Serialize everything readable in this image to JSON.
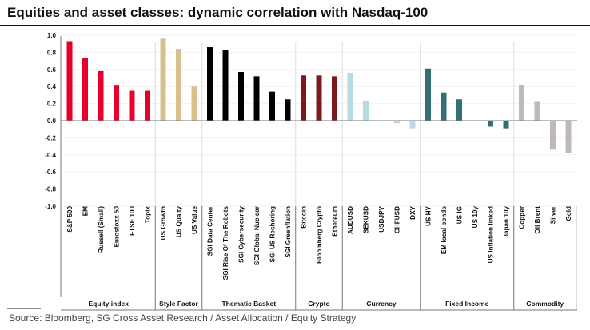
{
  "title": "Equities and asset classes: dynamic correlation with Nasdaq-100",
  "source": "Source: Bloomberg, SG Cross Asset Research / Asset Allocation / Equity Strategy",
  "chart_data": {
    "type": "bar",
    "title": "Equities and asset classes: dynamic correlation with Nasdaq-100",
    "ylim": [
      -1.0,
      1.0
    ],
    "yticks": [
      "1.0",
      "0.8",
      "0.6",
      "0.4",
      "0.2",
      "0.0",
      "-0.2",
      "-0.4",
      "-0.6",
      "-0.8",
      "-1.0"
    ],
    "grid": true,
    "groups": [
      {
        "name": "Equity index",
        "color": "#e8002d",
        "categories": [
          "S&P 500",
          "EM",
          "Russell (Small)",
          "Eurostoxx 50",
          "FTSE 100",
          "Topix"
        ],
        "values": [
          0.93,
          0.73,
          0.58,
          0.41,
          0.35,
          0.35
        ]
      },
      {
        "name": "Style Factor",
        "color": "#d8c08e",
        "categories": [
          "US Growth",
          "US Quaity",
          "US Value"
        ],
        "values": [
          0.96,
          0.84,
          0.4
        ]
      },
      {
        "name": "Thematic Basket",
        "color": "#000000",
        "categories": [
          "SGI Data Center",
          "SGI Rise Of The Robots",
          "SGI Cybersecurity",
          "SGI Global Nuclear",
          "SGI US Reshoring",
          "SGI Greenflation"
        ],
        "values": [
          0.86,
          0.83,
          0.57,
          0.52,
          0.34,
          0.25
        ]
      },
      {
        "name": "Crypto",
        "color": "#7b1a1e",
        "categories": [
          "Bitcoin",
          "Bloomberg Crypto",
          "Ethereum"
        ],
        "values": [
          0.53,
          0.53,
          0.52
        ]
      },
      {
        "name": "Currency",
        "color": "#b6dce1",
        "categories": [
          "AUDUSD",
          "SEKUSD",
          "USDJPY",
          "CHFUSD",
          "DXY"
        ],
        "values": [
          0.56,
          0.23,
          -0.01,
          -0.03,
          -0.09
        ]
      },
      {
        "name": "Fixed Income",
        "color": "#336f74",
        "categories": [
          "US HY",
          "EM local bonds",
          "US IG",
          "US 10y",
          "US Inflation linked",
          "Japan 10y"
        ],
        "values": [
          0.61,
          0.33,
          0.25,
          0.0,
          -0.07,
          -0.09
        ]
      },
      {
        "name": "Commodity",
        "color": "#bfb8b8",
        "categories": [
          "Copper",
          "Oil Brent",
          "Silver",
          "Gold"
        ],
        "values": [
          0.42,
          0.22,
          -0.34,
          -0.38
        ]
      }
    ]
  }
}
